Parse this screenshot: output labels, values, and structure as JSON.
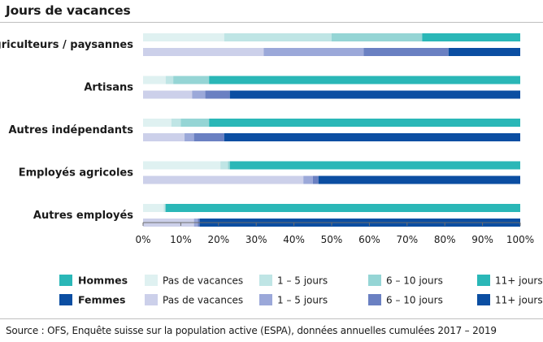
{
  "title": "Jours de vacances",
  "source": "Source : OFS, Enquête suisse sur la population active (ESPA), données annuelles cumulées 2017 – 2019",
  "legend": {
    "rows": [
      {
        "name": "Hommes",
        "key_color": "#2ab7b7",
        "items": [
          {
            "label": "Pas de vacances",
            "color": "#dff1f1"
          },
          {
            "label": "1 – 5 jours",
            "color": "#bfe5e5"
          },
          {
            "label": "6 – 10 jours",
            "color": "#95d5d5"
          },
          {
            "label": "11+ jours",
            "color": "#2ab7b7"
          }
        ]
      },
      {
        "name": "Femmes",
        "key_color": "#0b4ea2",
        "items": [
          {
            "label": "Pas de vacances",
            "color": "#ccd0ea"
          },
          {
            "label": "1 – 5 jours",
            "color": "#9ba8d9"
          },
          {
            "label": "6 – 10 jours",
            "color": "#6a80c2"
          },
          {
            "label": "11+ jours",
            "color": "#0b4ea2"
          }
        ]
      }
    ]
  },
  "chart_data": {
    "type": "bar",
    "orientation": "horizontal",
    "stacked": true,
    "title": "Jours de vacances",
    "categories": [
      "Agriculteurs / paysannes",
      "Artisans",
      "Autres indépendants",
      "Employés agricoles",
      "Autres employés"
    ],
    "stack_segments": [
      "Pas de vacances",
      "1 – 5 jours",
      "6 – 10 jours",
      "11+ jours"
    ],
    "series": [
      {
        "name": "Hommes",
        "colors": [
          "#dff1f1",
          "#bfe5e5",
          "#95d5d5",
          "#2ab7b7"
        ],
        "values": [
          [
            21.5,
            28.5,
            24,
            26
          ],
          [
            6,
            2,
            9.5,
            82.5
          ],
          [
            7.5,
            2.5,
            7.5,
            82.5
          ],
          [
            20.5,
            2,
            0.5,
            77
          ],
          [
            5.5,
            0.3,
            0.2,
            94
          ]
        ]
      },
      {
        "name": "Femmes",
        "colors": [
          "#ccd0ea",
          "#9ba8d9",
          "#6a80c2",
          "#0b4ea2"
        ],
        "values": [
          [
            32,
            26.5,
            22.5,
            19
          ],
          [
            13,
            3.5,
            6.5,
            77
          ],
          [
            11,
            2.5,
            8,
            78.5
          ],
          [
            42.5,
            2.5,
            1.5,
            53.5
          ],
          [
            13.5,
            1,
            0.5,
            85
          ]
        ]
      }
    ],
    "xlim": [
      0,
      100
    ],
    "xticks": [
      "0%",
      "10%",
      "20%",
      "30%",
      "40%",
      "50%",
      "60%",
      "70%",
      "80%",
      "90%",
      "100%"
    ],
    "xlabel": "",
    "ylabel": ""
  }
}
